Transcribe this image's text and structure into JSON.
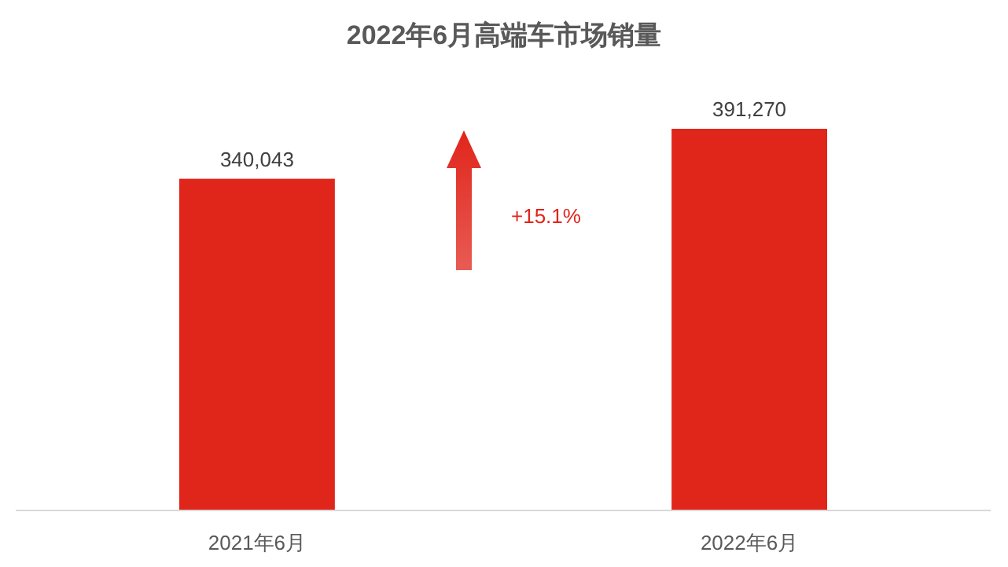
{
  "chart_data": {
    "type": "bar",
    "title": "2022年6月高端车市场销量",
    "categories": [
      "2021年6月",
      "2022年6月"
    ],
    "values": [
      340043,
      391270
    ],
    "color": "#e0251b",
    "data_labels": true,
    "value_labels": [
      "340,043",
      "391,270"
    ],
    "annotations": [
      "+15.1%"
    ]
  }
}
